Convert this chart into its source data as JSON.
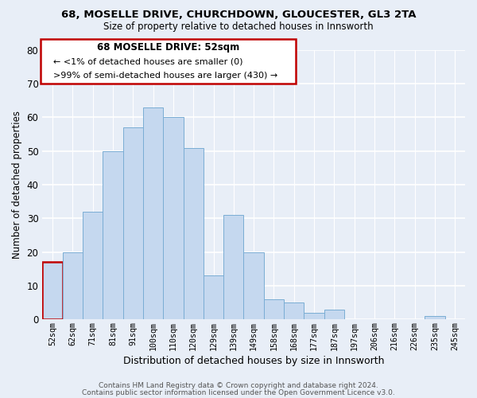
{
  "title1": "68, MOSELLE DRIVE, CHURCHDOWN, GLOUCESTER, GL3 2TA",
  "title2": "Size of property relative to detached houses in Innsworth",
  "xlabel": "Distribution of detached houses by size in Innsworth",
  "ylabel": "Number of detached properties",
  "categories": [
    "52sqm",
    "62sqm",
    "71sqm",
    "81sqm",
    "91sqm",
    "100sqm",
    "110sqm",
    "120sqm",
    "129sqm",
    "139sqm",
    "149sqm",
    "158sqm",
    "168sqm",
    "177sqm",
    "187sqm",
    "197sqm",
    "206sqm",
    "216sqm",
    "226sqm",
    "235sqm",
    "245sqm"
  ],
  "values": [
    17,
    20,
    32,
    50,
    57,
    63,
    60,
    51,
    13,
    31,
    20,
    6,
    5,
    2,
    3,
    0,
    0,
    0,
    0,
    1,
    0
  ],
  "bar_color": "#c5d8ef",
  "bar_edge_color": "#7aadd4",
  "highlight_index": 0,
  "highlight_color": "#c00000",
  "ylim": [
    0,
    80
  ],
  "yticks": [
    0,
    10,
    20,
    30,
    40,
    50,
    60,
    70,
    80
  ],
  "annotation_title": "68 MOSELLE DRIVE: 52sqm",
  "annotation_line1": "← <1% of detached houses are smaller (0)",
  "annotation_line2": ">99% of semi-detached houses are larger (430) →",
  "footer1": "Contains HM Land Registry data © Crown copyright and database right 2024.",
  "footer2": "Contains public sector information licensed under the Open Government Licence v3.0.",
  "bg_color": "#e8eef7"
}
